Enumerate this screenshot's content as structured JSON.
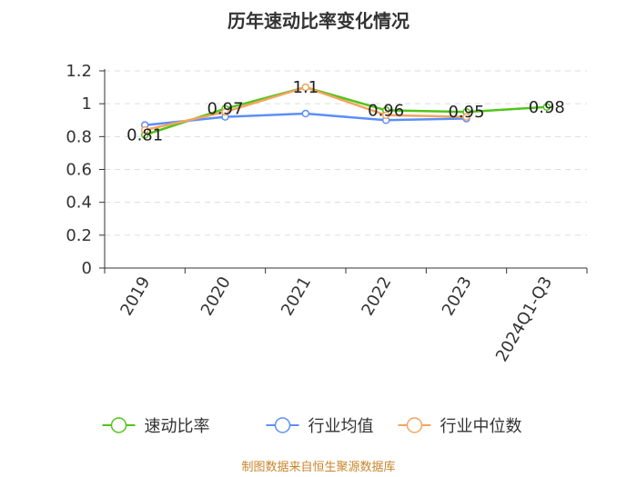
{
  "chart_data": {
    "type": "line",
    "title": "历年速动比率变化情况",
    "categories": [
      "2019",
      "2020",
      "2021",
      "2022",
      "2023",
      "2024Q1-Q3"
    ],
    "ylim": [
      0,
      1.2
    ],
    "yticks": [
      0,
      0.2,
      0.4,
      0.6,
      0.8,
      1,
      1.2
    ],
    "ytick_labels": [
      "0",
      "0.2",
      "0.4",
      "0.6",
      "0.8",
      "1",
      "1.2"
    ],
    "grid": true,
    "legend_position": "bottom",
    "series": [
      {
        "name": "速动比率",
        "color": "#52c41a",
        "values": [
          0.81,
          0.97,
          1.1,
          0.96,
          0.95,
          0.98
        ],
        "labels": [
          "0.81",
          "0.97",
          "1.1",
          "0.96",
          "0.95",
          "0.98"
        ]
      },
      {
        "name": "行业均值",
        "color": "#5b8ff9",
        "values": [
          0.87,
          0.92,
          0.94,
          0.9,
          0.91,
          null
        ]
      },
      {
        "name": "行业中位数",
        "color": "#f4a460",
        "values": [
          0.84,
          0.95,
          1.1,
          0.93,
          0.92,
          null
        ]
      }
    ]
  },
  "source": "制图数据来自恒生聚源数据库"
}
